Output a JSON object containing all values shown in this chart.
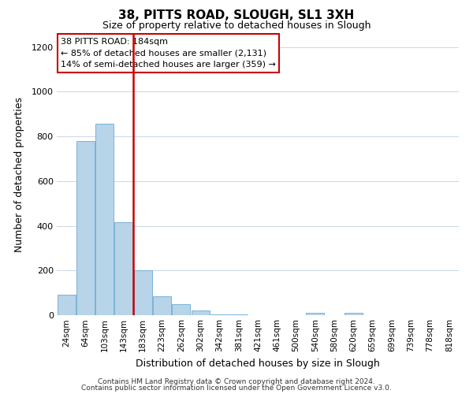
{
  "title": "38, PITTS ROAD, SLOUGH, SL1 3XH",
  "subtitle": "Size of property relative to detached houses in Slough",
  "xlabel": "Distribution of detached houses by size in Slough",
  "ylabel": "Number of detached properties",
  "categories": [
    "24sqm",
    "64sqm",
    "103sqm",
    "143sqm",
    "183sqm",
    "223sqm",
    "262sqm",
    "302sqm",
    "342sqm",
    "381sqm",
    "421sqm",
    "461sqm",
    "500sqm",
    "540sqm",
    "580sqm",
    "620sqm",
    "659sqm",
    "699sqm",
    "739sqm",
    "778sqm",
    "818sqm"
  ],
  "values": [
    90,
    780,
    855,
    415,
    200,
    83,
    50,
    22,
    5,
    2,
    0,
    0,
    0,
    10,
    0,
    10,
    0,
    0,
    0,
    0,
    0
  ],
  "bar_color": "#b8d4e8",
  "bar_edge_color": "#6aaad4",
  "property_line_index": 4,
  "annotation_title": "38 PITTS ROAD: 184sqm",
  "annotation_line1": "← 85% of detached houses are smaller (2,131)",
  "annotation_line2": "14% of semi-detached houses are larger (359) →",
  "annotation_box_facecolor": "#ffffff",
  "annotation_box_edgecolor": "#cc0000",
  "footer_line1": "Contains HM Land Registry data © Crown copyright and database right 2024.",
  "footer_line2": "Contains public sector information licensed under the Open Government Licence v3.0.",
  "ylim": [
    0,
    1260
  ],
  "yticks": [
    0,
    200,
    400,
    600,
    800,
    1000,
    1200
  ],
  "background_color": "#ffffff",
  "grid_color": "#c8d8e8",
  "title_fontsize": 11,
  "subtitle_fontsize": 9,
  "axis_label_fontsize": 9,
  "tick_fontsize": 7.5,
  "annotation_fontsize": 8,
  "footer_fontsize": 6.5
}
